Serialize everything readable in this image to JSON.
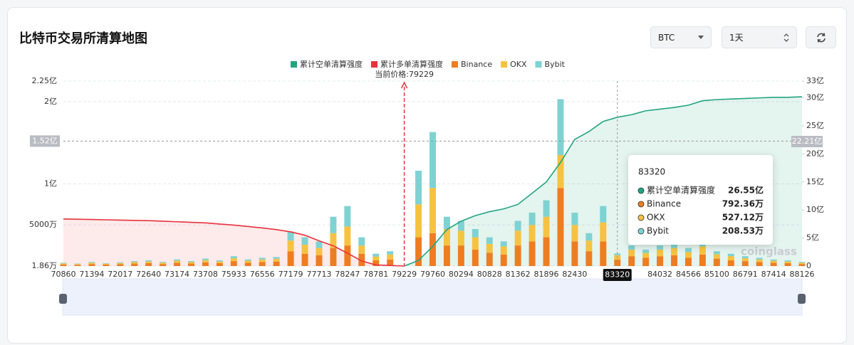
{
  "header": {
    "title": "比特币交易所清算地图",
    "controls": [
      "BTC",
      "1天"
    ]
  },
  "chart_data": {
    "type": "bar",
    "categories": [
      70860,
      null,
      71394,
      null,
      72017,
      null,
      72640,
      null,
      73174,
      null,
      73708,
      null,
      75933,
      null,
      76556,
      null,
      77179,
      null,
      77713,
      null,
      78247,
      null,
      78781,
      null,
      79229,
      null,
      79760,
      null,
      80294,
      null,
      80828,
      null,
      81362,
      null,
      81896,
      null,
      82430,
      null,
      null,
      83320,
      null,
      null,
      84032,
      null,
      84566,
      null,
      85100,
      null,
      86791,
      null,
      87414,
      null,
      88126
    ],
    "series": [
      {
        "name": "累计空单清算强度",
        "type": "line",
        "axis": "y2",
        "color": "#22a57f",
        "fill": "rgba(34,165,127,0.12)",
        "values": [
          null,
          null,
          null,
          null,
          null,
          null,
          null,
          null,
          null,
          null,
          null,
          null,
          null,
          null,
          null,
          null,
          null,
          null,
          null,
          null,
          null,
          null,
          null,
          null,
          0,
          100000000,
          350000000,
          650000000,
          800000000,
          900000000,
          970000000,
          1020000000,
          1100000000,
          1300000000,
          1500000000,
          1850000000,
          2260000000,
          2400000000,
          2580000000,
          2655000000,
          2700000000,
          2770000000,
          2800000000,
          2830000000,
          2870000000,
          2950000000,
          2970000000,
          2980000000,
          2990000000,
          3000000000,
          3010000000,
          3010000000,
          3020000000
        ]
      },
      {
        "name": "累计多单清算强度",
        "type": "line",
        "axis": "y2",
        "color": "#e8333c",
        "fill": "rgba(232,51,60,0.1)",
        "values": [
          840000000,
          835000000,
          830000000,
          825000000,
          820000000,
          815000000,
          810000000,
          800000000,
          790000000,
          780000000,
          770000000,
          750000000,
          730000000,
          705000000,
          680000000,
          650000000,
          610000000,
          550000000,
          450000000,
          360000000,
          230000000,
          90000000,
          20000000,
          10000000,
          0,
          null,
          null,
          null,
          null,
          null,
          null,
          null,
          null,
          null,
          null,
          null,
          null,
          null,
          null,
          null,
          null,
          null,
          null,
          null,
          null,
          null,
          null,
          null,
          null,
          null,
          null,
          null,
          null
        ]
      },
      {
        "name": "Binance",
        "type": "bar",
        "color": "#ee7d22",
        "values": [
          2000000,
          1500000,
          2500000,
          1800000,
          2200000,
          3000000,
          3500000,
          2500000,
          4000000,
          3000000,
          4500000,
          3500000,
          6000000,
          4000000,
          5000000,
          5500000,
          18000000,
          15000000,
          13000000,
          22000000,
          25000000,
          15000000,
          7000000,
          8000000,
          0,
          35000000,
          40000000,
          25000000,
          25000000,
          20000000,
          16000000,
          14000000,
          25000000,
          30000000,
          35000000,
          95000000,
          30000000,
          18000000,
          30000000,
          7923600,
          12000000,
          10000000,
          12000000,
          13000000,
          10000000,
          14000000,
          9000000,
          7000000,
          6000000,
          5000000,
          4000000,
          3500000,
          2500000
        ]
      },
      {
        "name": "OKX",
        "type": "bar",
        "color": "#f6c241",
        "values": [
          1200000,
          900000,
          1500000,
          1000000,
          1400000,
          1800000,
          2000000,
          1500000,
          2500000,
          1800000,
          2700000,
          2000000,
          3500000,
          2500000,
          3000000,
          3300000,
          13000000,
          11000000,
          9000000,
          18000000,
          23000000,
          10000000,
          4500000,
          6000000,
          0,
          40000000,
          55000000,
          20000000,
          18000000,
          15000000,
          11000000,
          10000000,
          18000000,
          20000000,
          25000000,
          40000000,
          20000000,
          13000000,
          23000000,
          5271200,
          8000000,
          6000000,
          8000000,
          9000000,
          7000000,
          10000000,
          5500000,
          5000000,
          3500000,
          3000000,
          2500000,
          2000000,
          1500000
        ]
      },
      {
        "name": "Bybit",
        "type": "bar",
        "color": "#7fd2d2",
        "values": [
          800000,
          600000,
          1000000,
          700000,
          900000,
          1200000,
          1500000,
          1000000,
          1500000,
          1200000,
          1800000,
          1500000,
          2500000,
          1500000,
          2000000,
          2200000,
          11000000,
          9000000,
          8000000,
          20000000,
          25000000,
          10000000,
          3500000,
          4000000,
          0,
          41000000,
          68000000,
          15000000,
          12000000,
          10000000,
          8000000,
          6000000,
          12000000,
          15000000,
          20000000,
          68000000,
          15000000,
          9000000,
          20000000,
          2085300,
          5000000,
          4000000,
          5000000,
          6000000,
          5000000,
          6000000,
          3500000,
          3000000,
          2500000,
          2000000,
          1500000,
          1500000,
          1000000
        ]
      }
    ],
    "ylim": [
      18600,
      225000000
    ],
    "yticks": [
      {
        "value": 18600,
        "label": "1.86万"
      },
      {
        "value": 50000000,
        "label": "5000万"
      },
      {
        "value": 100000000,
        "label": "1亿"
      },
      {
        "value": 200000000,
        "label": "2亿"
      },
      {
        "value": 225000000,
        "label": "2.25亿"
      }
    ],
    "y2lim": [
      0,
      3300000000
    ],
    "y2ticks": [
      0,
      {
        "value": 500000000,
        "label": "5亿"
      },
      {
        "value": 1000000000,
        "label": "10亿"
      },
      {
        "value": 1500000000,
        "label": "15亿"
      },
      {
        "value": 2000000000,
        "label": "20亿"
      },
      {
        "value": 2500000000,
        "label": "25亿"
      },
      {
        "value": 3000000000,
        "label": "30亿"
      },
      {
        "value": 3300000000,
        "label": "33亿"
      }
    ],
    "grid": true,
    "legend": "top",
    "current_price": {
      "text": "当前价格:79229",
      "value": 79229
    },
    "crosshair": {
      "y": {
        "value": 152000000,
        "label": "1.52亿"
      },
      "y2": {
        "value": 2221000000,
        "label": "22.21亿"
      }
    },
    "tooltip": {
      "title": "83320",
      "rows": [
        {
          "name": "累计空单清算强度",
          "color": "#22a57f",
          "value": 2655000000,
          "label": "26.55亿"
        },
        {
          "name": "Binance",
          "color": "#ee7d22",
          "value": 7923600,
          "label": "792.36万"
        },
        {
          "name": "OKX",
          "color": "#f6c241",
          "value": 5271200,
          "label": "527.12万"
        },
        {
          "name": "Bybit",
          "color": "#7fd2d2",
          "value": 2085300,
          "label": "208.53万"
        }
      ]
    },
    "watermark": "coinglass"
  }
}
